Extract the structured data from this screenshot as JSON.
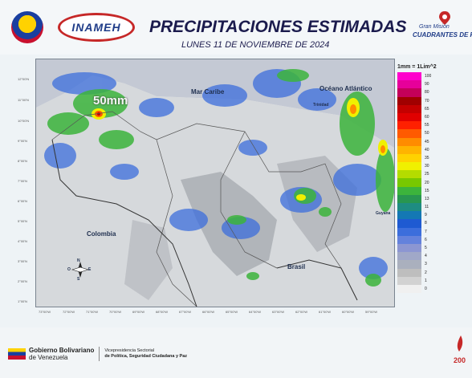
{
  "header": {
    "logo_inameh": "INAMEH",
    "title": "PRECIPITACIONES ESTIMADAS",
    "subtitle": "LUNES 11 DE NOVIEMBRE DE 2024",
    "mision_line1": "Gran Misión",
    "mision_line2": "CUADRANTES DE PAZ"
  },
  "map": {
    "labels": {
      "mar_caribe": "Mar Caribe",
      "oceano": "Océano Atlántico",
      "colombia": "Colombia",
      "brasil": "Brasil",
      "max_value": "50mm",
      "trinidad": "Trinidad",
      "guyana": "Guyana"
    },
    "lat_ticks": [
      "12°00'N",
      "11°00'N",
      "10°00'N",
      "9°00'N",
      "8°00'N",
      "7°00'N",
      "6°00'N",
      "5°00'N",
      "4°00'N",
      "3°00'N",
      "2°00'N",
      "1°00'N"
    ],
    "lon_ticks": [
      "73°00'W",
      "72°00'W",
      "71°00'W",
      "70°00'W",
      "69°00'W",
      "68°00'W",
      "67°00'W",
      "66°00'W",
      "65°00'W",
      "64°00'W",
      "63°00'W",
      "62°00'W",
      "61°00'W",
      "60°00'W",
      "59°00'W"
    ],
    "compass": {
      "n": "N",
      "s": "S",
      "e": "E",
      "w": "O"
    }
  },
  "legend": {
    "unit": "1mm = 1Lim^2",
    "items": [
      {
        "value": "100",
        "color": "#ff00cc"
      },
      {
        "value": "90",
        "color": "#e6009a"
      },
      {
        "value": "80",
        "color": "#c4005a"
      },
      {
        "value": "70",
        "color": "#a00000"
      },
      {
        "value": "65",
        "color": "#c40000"
      },
      {
        "value": "60",
        "color": "#e00000"
      },
      {
        "value": "55",
        "color": "#ff2000"
      },
      {
        "value": "50",
        "color": "#ff5a00"
      },
      {
        "value": "45",
        "color": "#ff8c00"
      },
      {
        "value": "40",
        "color": "#ffb400"
      },
      {
        "value": "35",
        "color": "#ffd200"
      },
      {
        "value": "30",
        "color": "#f0f000"
      },
      {
        "value": "25",
        "color": "#b4dc00"
      },
      {
        "value": "20",
        "color": "#78c800"
      },
      {
        "value": "15",
        "color": "#3cb43c"
      },
      {
        "value": "13",
        "color": "#289650"
      },
      {
        "value": "11",
        "color": "#1e8c82"
      },
      {
        "value": "9",
        "color": "#1478b4"
      },
      {
        "value": "8",
        "color": "#1e5ad2"
      },
      {
        "value": "7",
        "color": "#3c6edc"
      },
      {
        "value": "6",
        "color": "#6482dc"
      },
      {
        "value": "5",
        "color": "#8c96d2"
      },
      {
        "value": "4",
        "color": "#a0a8c8"
      },
      {
        "value": "3",
        "color": "#aab0be"
      },
      {
        "value": "2",
        "color": "#bebebe"
      },
      {
        "value": "1",
        "color": "#d2d2d2"
      },
      {
        "value": "0",
        "color": "#f0f0f0"
      }
    ]
  },
  "footer": {
    "gob_bold": "Gobierno Bolivariano",
    "gob_rest": "de Venezuela",
    "vice1": "Vicepresidencia Sectorial",
    "vice2": "de Política, Seguridad Ciudadana y Paz"
  }
}
